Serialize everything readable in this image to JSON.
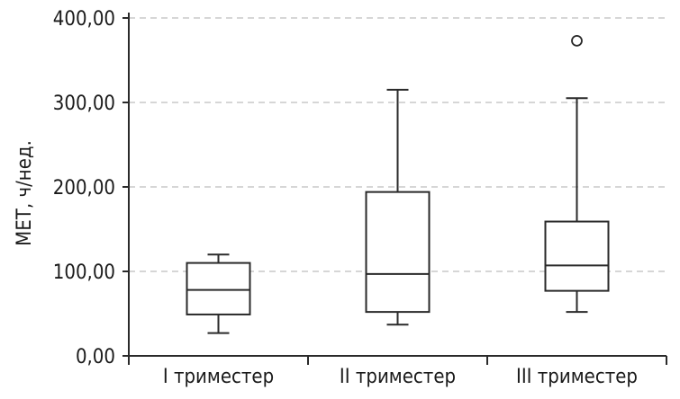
{
  "chart_data": {
    "type": "boxplot",
    "ylabel": "МЕТ, ч/нед.",
    "ylim": [
      0,
      400
    ],
    "yticks": [
      0,
      100,
      200,
      300,
      400
    ],
    "ytick_labels": [
      "0,00",
      "100,00",
      "200,00",
      "300,00",
      "400,00"
    ],
    "grid": true,
    "categories": [
      "I триместер",
      "II триместер",
      "III триместер"
    ],
    "boxes": [
      {
        "category": "I триместер",
        "min": 27,
        "q1": 49,
        "median": 78,
        "q3": 110,
        "max": 120,
        "outliers": []
      },
      {
        "category": "II триместер",
        "min": 37,
        "q1": 52,
        "median": 97,
        "q3": 194,
        "max": 315,
        "outliers": []
      },
      {
        "category": "III триместер",
        "min": 52,
        "q1": 77,
        "median": 107,
        "q3": 159,
        "max": 305,
        "outliers": [
          373
        ]
      }
    ]
  }
}
